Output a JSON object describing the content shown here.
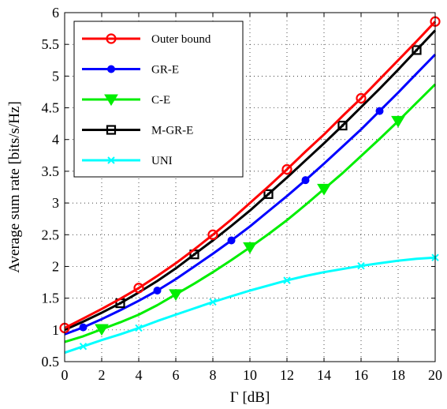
{
  "chart_data": {
    "type": "line",
    "title": "",
    "xlabel": "Γ [dB]",
    "ylabel": "Average sum rate [bits/s/Hz]",
    "xlim": [
      0,
      20
    ],
    "ylim": [
      0.5,
      6
    ],
    "xticks": [
      0,
      2,
      4,
      6,
      8,
      10,
      12,
      14,
      16,
      18,
      20
    ],
    "yticks": [
      0.5,
      1,
      1.5,
      2,
      2.5,
      3,
      3.5,
      4,
      4.5,
      5,
      5.5,
      6
    ],
    "xtick_labels": [
      "0",
      "2",
      "4",
      "6",
      "8",
      "10",
      "12",
      "14",
      "16",
      "18",
      "20"
    ],
    "ytick_labels": [
      "0.5",
      "1",
      "1.5",
      "2",
      "2.5",
      "3",
      "3.5",
      "4",
      "4.5",
      "5",
      "5.5",
      "6"
    ],
    "grid": true,
    "legend_position": "top-left",
    "series": [
      {
        "name": "Outer bound",
        "color": "#ff0000",
        "marker": "circle",
        "x": [
          0,
          1,
          2,
          3,
          4,
          5,
          6,
          7,
          8,
          9,
          10,
          11,
          12,
          13,
          14,
          15,
          16,
          17,
          18,
          19,
          20
        ],
        "y": [
          1.03,
          1.18,
          1.33,
          1.49,
          1.66,
          1.85,
          2.05,
          2.27,
          2.5,
          2.74,
          3.0,
          3.26,
          3.53,
          3.81,
          4.08,
          4.37,
          4.65,
          4.95,
          5.25,
          5.55,
          5.86
        ],
        "marker_x": [
          0,
          4,
          8,
          12,
          16,
          20
        ]
      },
      {
        "name": "GR-E",
        "color": "#0000ff",
        "marker": "dot",
        "x": [
          0,
          1,
          2,
          3,
          4,
          5,
          6,
          7,
          8,
          9,
          10,
          11,
          12,
          13,
          14,
          15,
          16,
          17,
          18,
          19,
          20
        ],
        "y": [
          0.93,
          1.04,
          1.17,
          1.31,
          1.46,
          1.62,
          1.8,
          2.0,
          2.2,
          2.41,
          2.63,
          2.87,
          3.11,
          3.36,
          3.62,
          3.89,
          4.16,
          4.45,
          4.74,
          5.04,
          5.34
        ],
        "marker_x": [
          1,
          5,
          9,
          13,
          17
        ]
      },
      {
        "name": "C-E",
        "color": "#00ee00",
        "marker": "triangle-down",
        "x": [
          0,
          1,
          2,
          3,
          4,
          5,
          6,
          7,
          8,
          9,
          10,
          11,
          12,
          13,
          14,
          15,
          16,
          17,
          18,
          19,
          20
        ],
        "y": [
          0.81,
          0.9,
          1.01,
          1.12,
          1.24,
          1.39,
          1.56,
          1.73,
          1.91,
          2.1,
          2.3,
          2.51,
          2.73,
          2.97,
          3.22,
          3.47,
          3.74,
          4.01,
          4.29,
          4.58,
          4.87
        ],
        "marker_x": [
          2,
          6,
          10,
          14,
          18
        ]
      },
      {
        "name": "M-GR-E",
        "color": "#000000",
        "marker": "square",
        "x": [
          0,
          1,
          2,
          3,
          4,
          5,
          6,
          7,
          8,
          9,
          10,
          11,
          12,
          13,
          14,
          15,
          16,
          17,
          18,
          19,
          20
        ],
        "y": [
          1.0,
          1.13,
          1.27,
          1.42,
          1.59,
          1.77,
          1.97,
          2.19,
          2.41,
          2.64,
          2.88,
          3.14,
          3.4,
          3.67,
          3.94,
          4.22,
          4.51,
          4.8,
          5.1,
          5.41,
          5.72
        ],
        "marker_x": [
          3,
          7,
          11,
          15,
          19
        ]
      },
      {
        "name": "UNI",
        "color": "#00ffff",
        "marker": "x",
        "x": [
          0,
          1,
          2,
          3,
          4,
          5,
          6,
          7,
          8,
          9,
          10,
          11,
          12,
          13,
          14,
          15,
          16,
          17,
          18,
          19,
          20
        ],
        "y": [
          0.64,
          0.74,
          0.84,
          0.93,
          1.03,
          1.14,
          1.24,
          1.34,
          1.44,
          1.53,
          1.62,
          1.7,
          1.78,
          1.85,
          1.91,
          1.96,
          2.01,
          2.05,
          2.09,
          2.12,
          2.14
        ],
        "marker_x": [
          1,
          4,
          8,
          12,
          16,
          20
        ]
      }
    ]
  }
}
